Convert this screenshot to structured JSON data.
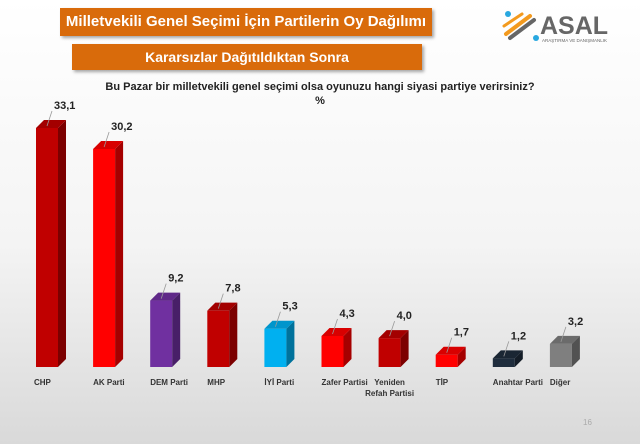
{
  "header": {
    "title": "Milletvekili Genel Seçimi İçin Partilerin Oy Dağılımı",
    "subtitle": "Kararsızlar Dağıtıldıktan Sonra",
    "logo_text": "ASAL",
    "logo_subtext": "ARAŞTIRMA VE DANIŞMANLIK"
  },
  "question": "Bu Pazar bir milletvekili genel seçimi olsa oyunuzu hangi siyasi partiye verirsiniz?",
  "unit": "%",
  "page_number": "16",
  "chart_data": {
    "type": "bar",
    "categories": [
      "CHP",
      "AK Parti",
      "DEM Parti",
      "MHP",
      "İYİ Parti",
      "Zafer Partisi",
      "Yeniden Refah Partisi",
      "TİP",
      "Anahtar Parti",
      "Diğer"
    ],
    "values": [
      33.1,
      30.2,
      9.2,
      7.8,
      5.3,
      4.3,
      4.0,
      1.7,
      1.2,
      3.2
    ],
    "labels": [
      "33,1",
      "30,2",
      "9,2",
      "7,8",
      "5,3",
      "4,3",
      "4,0",
      "1,7",
      "1,2",
      "3,2"
    ],
    "colors": [
      "#c00000",
      "#ff0000",
      "#7030a0",
      "#c00000",
      "#00b0f0",
      "#ff0000",
      "#c00000",
      "#ff0000",
      "#1f2d3d",
      "#7f7f7f"
    ],
    "ylim": [
      0,
      35
    ],
    "grid": false,
    "style": "3d"
  }
}
